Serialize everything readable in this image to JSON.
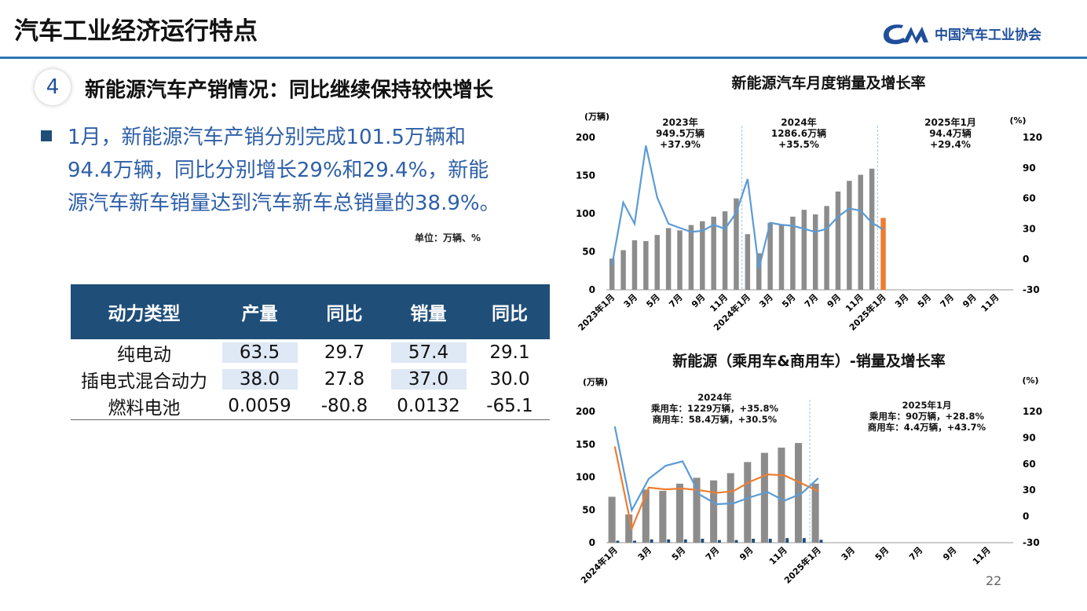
{
  "header": {
    "title": "汽车工业经济运行特点",
    "logo": "中国汽车工业协会"
  },
  "section": {
    "number": "4",
    "title": "新能源汽车产销情况：同比继续保持较快增长"
  },
  "bullet": [
    "1月，新能源汽车产销分别完成101.5万辆和",
    "94.4万辆，同比分别增长29%和29.4%，新能",
    "源汽车新车销量达到汽车新车总销量的38.9%。"
  ],
  "unit": "单位：万辆、%",
  "table": {
    "header": [
      "动力类型",
      "产量",
      "同比",
      "销量",
      "同比"
    ],
    "rows": [
      [
        "纯电动",
        "63.5",
        "29.7",
        "57.4",
        "29.1"
      ],
      [
        "插电式混合动力",
        "38.0",
        "27.8",
        "37.0",
        "30.0"
      ],
      [
        "燃料电池",
        "0.0059",
        "-80.8",
        "0.0132",
        "-65.1"
      ]
    ]
  },
  "chart_data": [
    {
      "type": "bar",
      "title": "新能源汽车月度销量及增长率",
      "ylabel": "(万辆)",
      "y2label": "(%)",
      "bar_mode": "overlap",
      "categories": [
        "2023年1月",
        null,
        "3月",
        null,
        "5月",
        null,
        "7月",
        null,
        "9月",
        null,
        "11月",
        null,
        "2024年1月",
        null,
        "3月",
        null,
        "5月",
        null,
        "7月",
        null,
        "9月",
        null,
        "11月",
        null,
        "2025年1月",
        null,
        "3月",
        null,
        "5月",
        null,
        "7月",
        null,
        "9月",
        null,
        "11月",
        null
      ],
      "series": [
        {
          "type": "bar",
          "color": "#8c8c8c",
          "values": [
            41,
            52,
            65,
            64,
            72,
            81,
            78,
            85,
            90,
            96,
            103,
            120,
            73,
            48,
            88,
            85,
            96,
            105,
            99,
            110,
            129,
            143,
            151,
            159,
            null,
            null,
            null,
            null,
            null,
            null,
            null,
            null,
            null,
            null,
            null,
            null
          ]
        },
        {
          "type": "bar",
          "color": "#ed7d31",
          "values": [
            null,
            null,
            null,
            null,
            null,
            null,
            null,
            null,
            null,
            null,
            null,
            null,
            null,
            null,
            null,
            null,
            null,
            null,
            null,
            null,
            null,
            null,
            null,
            null,
            94.4,
            null,
            null,
            null,
            null,
            null,
            null,
            null,
            null,
            null,
            null,
            null
          ]
        },
        {
          "type": "line",
          "axis": "y2",
          "color": "#5b9bd5",
          "values": [
            -6,
            56,
            35,
            112,
            61,
            35,
            31,
            27,
            28,
            34,
            30,
            46,
            79,
            -9,
            36,
            34,
            33,
            30,
            27,
            30,
            42,
            50,
            48,
            36,
            29.4,
            null,
            null,
            null,
            null,
            null,
            null,
            null,
            null,
            null,
            null,
            null
          ]
        }
      ],
      "ylim": [
        0,
        200
      ],
      "yticks": [
        0,
        50,
        100,
        150,
        200
      ],
      "y2lim": [
        -30,
        120
      ],
      "y2ticks": [
        -30,
        0,
        30,
        60,
        90,
        120
      ],
      "annotations": [
        [
          "2023年",
          "949.5万辆",
          "+37.9%"
        ],
        [
          "2024年",
          "1286.6万辆",
          "+35.5%"
        ],
        [
          "2025年1月",
          "94.4万辆",
          "+29.4%"
        ]
      ]
    },
    {
      "type": "bar",
      "title": "新能源（乘用车&商用车）-销量及增长率",
      "ylabel": "(万辆)",
      "y2label": "(%)",
      "bar_mode": "grouped",
      "categories": [
        "2024年1月",
        null,
        "3月",
        null,
        "5月",
        null,
        "7月",
        null,
        "9月",
        null,
        "11月",
        null,
        "2025年1月",
        null,
        "3月",
        null,
        "5月",
        null,
        "7月",
        null,
        "9月",
        null,
        "11月",
        null
      ],
      "series": [
        {
          "type": "bar",
          "color": "#8c8c8c",
          "values": [
            70,
            43,
            81,
            79,
            90,
            99,
            95,
            106,
            123,
            137,
            145,
            152,
            90,
            null,
            null,
            null,
            null,
            null,
            null,
            null,
            null,
            null,
            null,
            null
          ]
        },
        {
          "type": "bar",
          "color": "#1f4e79",
          "values": [
            3,
            3,
            5,
            5,
            5,
            6,
            4,
            4,
            6,
            6,
            7,
            7,
            4.4,
            null,
            null,
            null,
            null,
            null,
            null,
            null,
            null,
            null,
            null,
            null
          ]
        },
        {
          "type": "line",
          "axis": "y2",
          "color": "#ed7d31",
          "values": [
            80,
            -14,
            33,
            31,
            32,
            30,
            27,
            29,
            40,
            48,
            47,
            38,
            28.8,
            null,
            null,
            null,
            null,
            null,
            null,
            null,
            null,
            null,
            null,
            null
          ]
        },
        {
          "type": "line",
          "axis": "y2",
          "color": "#5b9bd5",
          "values": [
            103,
            7,
            43,
            58,
            63,
            25,
            14,
            15,
            22,
            28,
            18,
            26,
            43.7,
            null,
            null,
            null,
            null,
            null,
            null,
            null,
            null,
            null,
            null,
            null
          ]
        }
      ],
      "ylim": [
        0,
        200
      ],
      "yticks": [
        0,
        50,
        100,
        150,
        200
      ],
      "y2lim": [
        -30,
        120
      ],
      "y2ticks": [
        -30,
        0,
        30,
        60,
        90,
        120
      ],
      "annotations": [
        [
          "2024年",
          "乘用车：1229万辆，+35.8%",
          "商用车：58.4万辆，+30.5%"
        ],
        [
          "2025年1月",
          "乘用车：90万辆，+28.8%",
          "商用车：4.4万辆，+43.7%"
        ]
      ]
    }
  ],
  "page_number": "22"
}
